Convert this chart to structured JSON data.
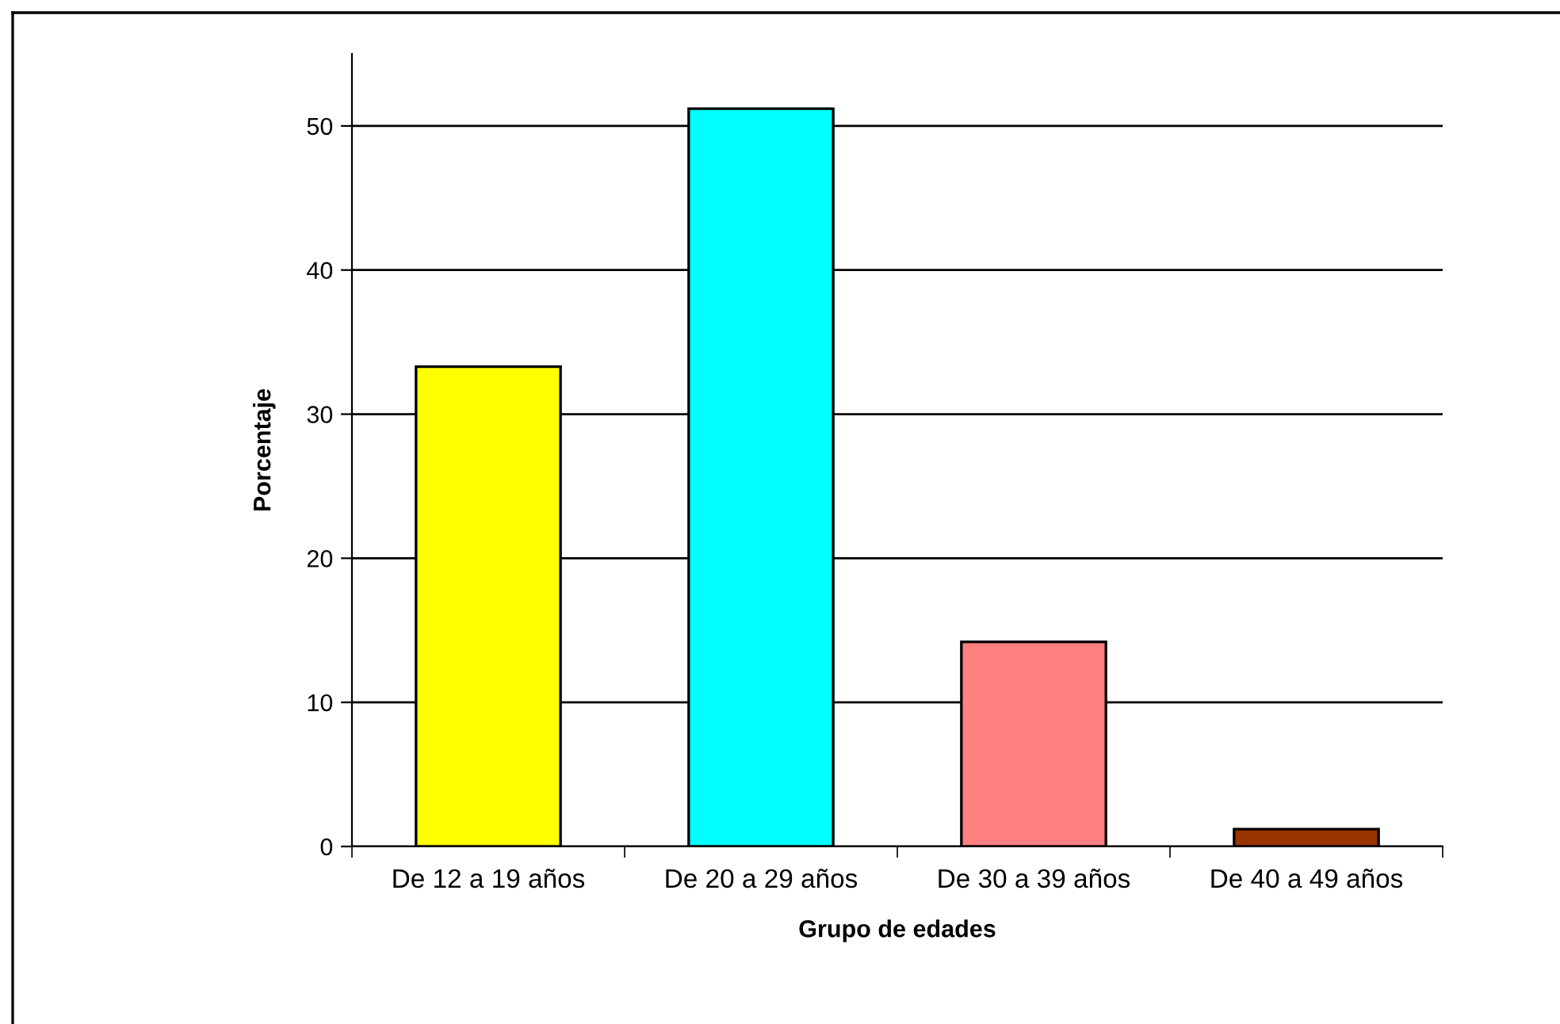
{
  "chart_data": {
    "type": "bar",
    "xlabel": "Grupo de edades",
    "ylabel": "Porcentaje",
    "categories": [
      "De 12 a 19 años",
      "De 20 a 29 años",
      "De 30 a 39 años",
      "De 40 a 49 años"
    ],
    "values": [
      33.3,
      51.2,
      14.2,
      1.2
    ],
    "colors": [
      "#ffff00",
      "#00ffff",
      "#ff8080",
      "#993300"
    ],
    "ylim": [
      0,
      55
    ],
    "yticks": [
      0,
      10,
      20,
      30,
      40,
      50
    ],
    "grid": "y",
    "legend": false
  }
}
